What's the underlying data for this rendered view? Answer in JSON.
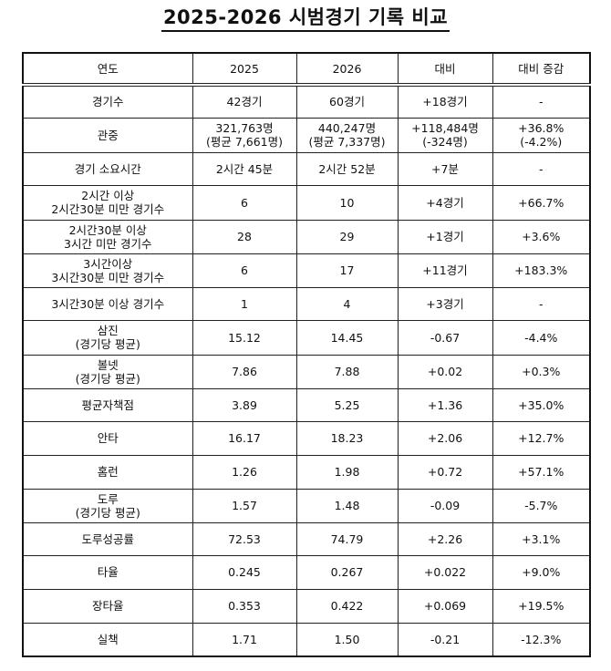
{
  "title": "2025-2026 시범경기 기록 비교",
  "table": {
    "headers": [
      "연도",
      "2025",
      "2026",
      "대비",
      "대비 증감"
    ],
    "rows": [
      {
        "label": [
          "경기수"
        ],
        "v2025": [
          "42경기"
        ],
        "v2026": [
          "60경기"
        ],
        "diff": [
          "+18경기"
        ],
        "pct": [
          "-"
        ],
        "h": 36
      },
      {
        "label": [
          "관중"
        ],
        "v2025": [
          "321,763명",
          "(평균 7,661명)"
        ],
        "v2026": [
          "440,247명",
          "(평균 7,337명)"
        ],
        "diff": [
          "+118,484명",
          "(-324명)"
        ],
        "pct": [
          "+36.8%",
          "(-4.2%)"
        ],
        "h": 38
      },
      {
        "label": [
          "경기 소요시간"
        ],
        "v2025": [
          "2시간 45분"
        ],
        "v2026": [
          "2시간 52분"
        ],
        "diff": [
          "+7분"
        ],
        "pct": [
          "-"
        ],
        "h": 36
      },
      {
        "label": [
          "2시간 이상",
          "2시간30분 미만 경기수"
        ],
        "v2025": [
          "6"
        ],
        "v2026": [
          "10"
        ],
        "diff": [
          "+4경기"
        ],
        "pct": [
          "+66.7%"
        ],
        "h": 38
      },
      {
        "label": [
          "2시간30분 이상",
          "3시간 미만 경기수"
        ],
        "v2025": [
          "28"
        ],
        "v2026": [
          "29"
        ],
        "diff": [
          "+1경기"
        ],
        "pct": [
          "+3.6%"
        ],
        "h": 37
      },
      {
        "label": [
          "3시간이상",
          "3시간30분 미만 경기수"
        ],
        "v2025": [
          "6"
        ],
        "v2026": [
          "17"
        ],
        "diff": [
          "+11경기"
        ],
        "pct": [
          "+183.3%"
        ],
        "h": 37
      },
      {
        "label": [
          "3시간30분 이상 경기수"
        ],
        "v2025": [
          "1"
        ],
        "v2026": [
          "4"
        ],
        "diff": [
          "+3경기"
        ],
        "pct": [
          "-"
        ],
        "h": 36
      },
      {
        "label": [
          "삼진",
          "(경기당 평균)"
        ],
        "v2025": [
          "15.12"
        ],
        "v2026": [
          "14.45"
        ],
        "diff": [
          "-0.67"
        ],
        "pct": [
          "-4.4%"
        ],
        "h": 38
      },
      {
        "label": [
          "볼넷",
          "(경기당 평균)"
        ],
        "v2025": [
          "7.86"
        ],
        "v2026": [
          "7.88"
        ],
        "diff": [
          "+0.02"
        ],
        "pct": [
          "+0.3%"
        ],
        "h": 37
      },
      {
        "label": [
          "평균자책점"
        ],
        "v2025": [
          "3.89"
        ],
        "v2026": [
          "5.25"
        ],
        "diff": [
          "+1.36"
        ],
        "pct": [
          "+35.0%"
        ],
        "h": 36
      },
      {
        "label": [
          "안타"
        ],
        "v2025": [
          "16.17"
        ],
        "v2026": [
          "18.23"
        ],
        "diff": [
          "+2.06"
        ],
        "pct": [
          "+12.7%"
        ],
        "h": 37
      },
      {
        "label": [
          "홈런"
        ],
        "v2025": [
          "1.26"
        ],
        "v2026": [
          "1.98"
        ],
        "diff": [
          "+0.72"
        ],
        "pct": [
          "+57.1%"
        ],
        "h": 37
      },
      {
        "label": [
          "도루",
          "(경기당 평균)"
        ],
        "v2025": [
          "1.57"
        ],
        "v2026": [
          "1.48"
        ],
        "diff": [
          "-0.09"
        ],
        "pct": [
          "-5.7%"
        ],
        "h": 37
      },
      {
        "label": [
          "도루성공률"
        ],
        "v2025": [
          "72.53"
        ],
        "v2026": [
          "74.79"
        ],
        "diff": [
          "+2.26"
        ],
        "pct": [
          "+3.1%"
        ],
        "h": 36
      },
      {
        "label": [
          "타율"
        ],
        "v2025": [
          "0.245"
        ],
        "v2026": [
          "0.267"
        ],
        "diff": [
          "+0.022"
        ],
        "pct": [
          "+9.0%"
        ],
        "h": 37
      },
      {
        "label": [
          "장타율"
        ],
        "v2025": [
          "0.353"
        ],
        "v2026": [
          "0.422"
        ],
        "diff": [
          "+0.069"
        ],
        "pct": [
          "+19.5%"
        ],
        "h": 37
      },
      {
        "label": [
          "실책"
        ],
        "v2025": [
          "1.71"
        ],
        "v2026": [
          "1.50"
        ],
        "diff": [
          "-0.21"
        ],
        "pct": [
          "-12.3%"
        ],
        "h": 37
      }
    ]
  }
}
